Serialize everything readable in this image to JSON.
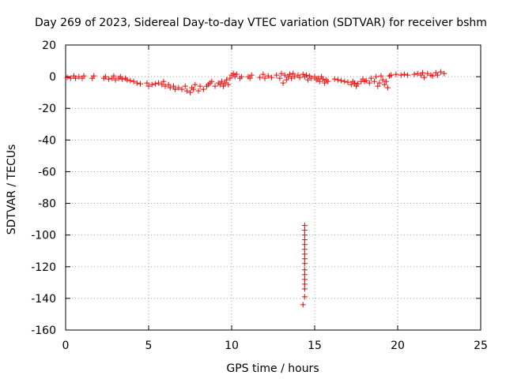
{
  "chart_data": {
    "type": "scatter",
    "title": "Day 269 of 2023, Sidereal Day-to-day VTEC variation (SDTVAR) for receiver bshm",
    "xlabel": "GPS time / hours",
    "ylabel": "SDTVAR / TECUs",
    "xlim": [
      0,
      25
    ],
    "ylim": [
      -160,
      20
    ],
    "xticks": [
      0,
      5,
      10,
      15,
      20,
      25
    ],
    "yticks": [
      20,
      0,
      -20,
      -40,
      -60,
      -80,
      -100,
      -120,
      -140,
      -160
    ],
    "grid": true,
    "marker": "+",
    "color": "#ff0000",
    "series": [
      {
        "name": "SDTVAR",
        "points": [
          [
            0.1,
            -0.5
          ],
          [
            0.3,
            -1
          ],
          [
            0.5,
            0.5
          ],
          [
            0.6,
            -1
          ],
          [
            0.8,
            0
          ],
          [
            1.0,
            -1
          ],
          [
            1.1,
            0.5
          ],
          [
            1.6,
            -1
          ],
          [
            1.7,
            0.5
          ],
          [
            2.3,
            -1
          ],
          [
            2.4,
            0
          ],
          [
            2.6,
            -1.5
          ],
          [
            2.8,
            -1
          ],
          [
            2.9,
            0.5
          ],
          [
            3.0,
            -2
          ],
          [
            3.2,
            -1
          ],
          [
            3.3,
            0
          ],
          [
            3.4,
            -1.5
          ],
          [
            3.6,
            -1
          ],
          [
            3.7,
            -2
          ],
          [
            3.9,
            -2.5
          ],
          [
            4.1,
            -3
          ],
          [
            4.3,
            -4
          ],
          [
            4.5,
            -4.5
          ],
          [
            4.9,
            -4
          ],
          [
            5.0,
            -6
          ],
          [
            5.2,
            -5
          ],
          [
            5.4,
            -4.5
          ],
          [
            5.6,
            -4
          ],
          [
            5.8,
            -5
          ],
          [
            5.9,
            -3
          ],
          [
            6.0,
            -6
          ],
          [
            6.2,
            -5
          ],
          [
            6.3,
            -7
          ],
          [
            6.5,
            -6
          ],
          [
            6.6,
            -8
          ],
          [
            6.8,
            -7
          ],
          [
            7.0,
            -8
          ],
          [
            7.2,
            -6
          ],
          [
            7.3,
            -9
          ],
          [
            7.5,
            -10
          ],
          [
            7.6,
            -7
          ],
          [
            7.7,
            -8
          ],
          [
            7.8,
            -5
          ],
          [
            8.0,
            -9
          ],
          [
            8.1,
            -6
          ],
          [
            8.3,
            -8
          ],
          [
            8.5,
            -6
          ],
          [
            8.6,
            -5
          ],
          [
            8.7,
            -4
          ],
          [
            8.8,
            -3
          ],
          [
            9.0,
            -6
          ],
          [
            9.2,
            -4
          ],
          [
            9.3,
            -5
          ],
          [
            9.4,
            -3
          ],
          [
            9.5,
            -6
          ],
          [
            9.6,
            -4
          ],
          [
            9.7,
            -2
          ],
          [
            9.8,
            -5
          ],
          [
            9.9,
            -1
          ],
          [
            10.0,
            1
          ],
          [
            10.1,
            2
          ],
          [
            10.2,
            0
          ],
          [
            10.3,
            1.5
          ],
          [
            10.5,
            -1
          ],
          [
            10.6,
            0
          ],
          [
            11.0,
            0
          ],
          [
            11.1,
            -1
          ],
          [
            11.2,
            1
          ],
          [
            11.7,
            -0.5
          ],
          [
            11.9,
            1.5
          ],
          [
            12.0,
            -1
          ],
          [
            12.2,
            0.5
          ],
          [
            12.4,
            -0.5
          ],
          [
            12.7,
            1
          ],
          [
            12.9,
            -1
          ],
          [
            13.0,
            2
          ],
          [
            13.1,
            -4
          ],
          [
            13.2,
            1
          ],
          [
            13.3,
            -2
          ],
          [
            13.4,
            0
          ],
          [
            13.5,
            1.5
          ],
          [
            13.6,
            -1
          ],
          [
            13.7,
            2
          ],
          [
            13.8,
            0
          ],
          [
            14.0,
            1
          ],
          [
            14.1,
            -0.5
          ],
          [
            14.3,
            1.5
          ],
          [
            14.4,
            0
          ],
          [
            14.5,
            1
          ],
          [
            14.6,
            -2
          ],
          [
            14.7,
            0.5
          ],
          [
            14.8,
            -1
          ],
          [
            15.0,
            0
          ],
          [
            15.1,
            -2
          ],
          [
            15.2,
            -1
          ],
          [
            15.3,
            -3
          ],
          [
            15.4,
            0
          ],
          [
            15.5,
            -1.5
          ],
          [
            15.6,
            -4
          ],
          [
            15.7,
            -2
          ],
          [
            15.8,
            -3
          ],
          [
            16.2,
            -1.5
          ],
          [
            16.4,
            -2
          ],
          [
            16.6,
            -2.5
          ],
          [
            16.8,
            -3
          ],
          [
            17.0,
            -3.5
          ],
          [
            17.2,
            -5
          ],
          [
            17.3,
            -3
          ],
          [
            17.4,
            -4
          ],
          [
            17.5,
            -6
          ],
          [
            17.6,
            -4.5
          ],
          [
            17.8,
            -3
          ],
          [
            17.9,
            -1.5
          ],
          [
            18.0,
            -3
          ],
          [
            18.1,
            -2.5
          ],
          [
            18.3,
            -4
          ],
          [
            18.4,
            -1
          ],
          [
            18.6,
            -3
          ],
          [
            18.7,
            0
          ],
          [
            18.8,
            -6
          ],
          [
            18.9,
            -4
          ],
          [
            19.0,
            0.5
          ],
          [
            19.1,
            -2
          ],
          [
            19.2,
            -5
          ],
          [
            19.3,
            -3
          ],
          [
            19.4,
            -7
          ],
          [
            19.5,
            0.5
          ],
          [
            19.6,
            1
          ],
          [
            19.9,
            1.5
          ],
          [
            20.2,
            1
          ],
          [
            20.4,
            1.5
          ],
          [
            20.6,
            1
          ],
          [
            21.0,
            1.5
          ],
          [
            21.2,
            2
          ],
          [
            21.4,
            1
          ],
          [
            21.5,
            2.5
          ],
          [
            21.6,
            -0.5
          ],
          [
            21.8,
            2
          ],
          [
            22.0,
            1
          ],
          [
            22.1,
            0.5
          ],
          [
            22.3,
            2.5
          ],
          [
            22.4,
            1
          ],
          [
            22.6,
            3
          ],
          [
            22.8,
            2
          ],
          [
            14.4,
            -94
          ],
          [
            14.4,
            -97
          ],
          [
            14.4,
            -100
          ],
          [
            14.4,
            -103
          ],
          [
            14.4,
            -106
          ],
          [
            14.4,
            -109
          ],
          [
            14.4,
            -112
          ],
          [
            14.4,
            -115
          ],
          [
            14.4,
            -118
          ],
          [
            14.4,
            -122
          ],
          [
            14.4,
            -125
          ],
          [
            14.4,
            -128
          ],
          [
            14.4,
            -131
          ],
          [
            14.4,
            -134
          ],
          [
            14.4,
            -139
          ],
          [
            14.3,
            -144
          ]
        ]
      }
    ]
  }
}
